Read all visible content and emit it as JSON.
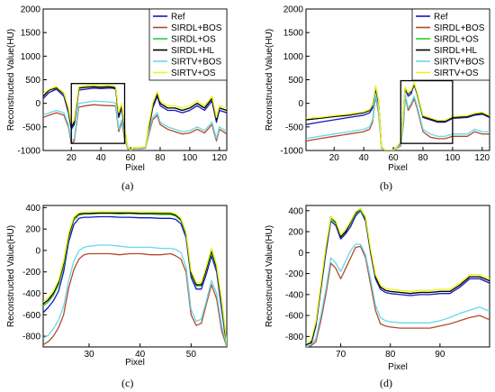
{
  "figure": {
    "series": [
      {
        "name": "Ref",
        "color": "#1515c8"
      },
      {
        "name": "SIRDL+BOS",
        "color": "#b34a2a"
      },
      {
        "name": "SIRDL+OS",
        "color": "#2bd12b"
      },
      {
        "name": "SIRDL+HL",
        "color": "#000000"
      },
      {
        "name": "SIRTV+BOS",
        "color": "#66d9e8"
      },
      {
        "name": "SIRTV+OS",
        "color": "#f2f21a"
      }
    ]
  },
  "chart_data": [
    {
      "type": "line",
      "caption": "(a)",
      "xlabel": "Pixel",
      "ylabel": "Reconstructed Value(HU)",
      "xlim": [
        1,
        125
      ],
      "ylim": [
        -1000,
        2000
      ],
      "xticks": [
        20,
        40,
        60,
        80,
        100,
        120
      ],
      "yticks": [
        -1000,
        -500,
        0,
        500,
        1000,
        1500,
        2000
      ],
      "legend": "top-right",
      "zoom_box": {
        "x": [
          20,
          56
        ],
        "y": [
          -850,
          420
        ]
      },
      "x": [
        1,
        5,
        10,
        15,
        18,
        20,
        22,
        25,
        30,
        35,
        40,
        45,
        48,
        50,
        52,
        54,
        56,
        58,
        60,
        62,
        65,
        70,
        72,
        75,
        78,
        80,
        85,
        90,
        95,
        100,
        105,
        110,
        115,
        118,
        120,
        125
      ],
      "series": [
        {
          "name": "Ref",
          "values": [
            100,
            230,
            300,
            150,
            -200,
            -550,
            -450,
            280,
            300,
            320,
            310,
            320,
            320,
            300,
            -300,
            -100,
            -600,
            -950,
            -1000,
            -950,
            -960,
            -950,
            -600,
            -100,
            150,
            -50,
            -150,
            -150,
            -200,
            -150,
            -50,
            -150,
            50,
            -400,
            -150,
            -200
          ]
        },
        {
          "name": "SIRDL+BOS",
          "values": [
            -300,
            -250,
            -200,
            -250,
            -500,
            -850,
            -800,
            -80,
            -50,
            -30,
            -40,
            -50,
            -50,
            -60,
            -600,
            -400,
            -750,
            -950,
            -1000,
            -960,
            -960,
            -950,
            -700,
            -350,
            -250,
            -450,
            -550,
            -600,
            -650,
            -630,
            -550,
            -630,
            -450,
            -800,
            -550,
            -650
          ]
        },
        {
          "name": "SIRDL+OS",
          "values": [
            150,
            280,
            320,
            200,
            -150,
            -500,
            -400,
            330,
            350,
            360,
            350,
            360,
            350,
            330,
            -250,
            -50,
            -550,
            -930,
            -1000,
            -940,
            -950,
            -930,
            -550,
            -50,
            200,
            0,
            -100,
            -100,
            -150,
            -100,
            0,
            -100,
            100,
            -350,
            -100,
            -150
          ]
        },
        {
          "name": "SIRDL+HL",
          "values": [
            150,
            280,
            330,
            200,
            -150,
            -500,
            -400,
            320,
            340,
            350,
            340,
            350,
            340,
            320,
            -250,
            -50,
            -550,
            -930,
            -1000,
            -940,
            -950,
            -930,
            -550,
            -50,
            200,
            0,
            -100,
            -100,
            -150,
            -100,
            0,
            -100,
            100,
            -350,
            -100,
            -150
          ]
        },
        {
          "name": "SIRTV+BOS",
          "values": [
            -250,
            -200,
            -150,
            -200,
            -450,
            -800,
            -750,
            0,
            20,
            50,
            40,
            30,
            20,
            0,
            -550,
            -350,
            -700,
            -930,
            -1000,
            -950,
            -950,
            -940,
            -650,
            -300,
            -200,
            -400,
            -500,
            -550,
            -600,
            -580,
            -500,
            -580,
            -400,
            -750,
            -500,
            -600
          ]
        },
        {
          "name": "SIRTV+OS",
          "values": [
            200,
            300,
            350,
            220,
            -100,
            -450,
            -350,
            350,
            370,
            380,
            370,
            380,
            370,
            350,
            -200,
            0,
            -500,
            -920,
            -1000,
            -930,
            -940,
            -920,
            -500,
            0,
            250,
            50,
            -50,
            -50,
            -100,
            -50,
            50,
            -50,
            150,
            -300,
            -50,
            -100
          ]
        }
      ]
    },
    {
      "type": "line",
      "caption": "(b)",
      "xlabel": "Pixel",
      "ylabel": "Reconstructed Value(HU)",
      "xlim": [
        1,
        125
      ],
      "ylim": [
        -1000,
        2000
      ],
      "xticks": [
        20,
        40,
        60,
        80,
        100,
        120
      ],
      "yticks": [
        -1000,
        -500,
        0,
        500,
        1000,
        1500,
        2000
      ],
      "legend": "top-right",
      "zoom_box": {
        "x": [
          65,
          100
        ],
        "y": [
          -850,
          480
        ]
      },
      "x": [
        1,
        10,
        20,
        30,
        40,
        44,
        46,
        48,
        50,
        52,
        55,
        60,
        65,
        67,
        68,
        70,
        72,
        74,
        76,
        80,
        85,
        90,
        95,
        100,
        110,
        115,
        120,
        125
      ],
      "series": [
        {
          "name": "Ref",
          "values": [
            -450,
            -400,
            -350,
            -300,
            -250,
            -200,
            -100,
            300,
            0,
            -950,
            -1000,
            -1000,
            -850,
            -100,
            300,
            150,
            200,
            400,
            200,
            -300,
            -350,
            -400,
            -400,
            -320,
            -300,
            -250,
            -230,
            -300
          ]
        },
        {
          "name": "SIRDL+BOS",
          "values": [
            -800,
            -750,
            -700,
            -650,
            -600,
            -550,
            -400,
            150,
            -200,
            -950,
            -1000,
            -1000,
            -900,
            -400,
            150,
            -150,
            -50,
            100,
            -100,
            -600,
            -720,
            -750,
            -750,
            -700,
            -700,
            -600,
            -650,
            -650
          ]
        },
        {
          "name": "SIRDL+OS",
          "values": [
            -350,
            -320,
            -280,
            -250,
            -200,
            -150,
            -50,
            350,
            50,
            -930,
            -1000,
            -1000,
            -830,
            -50,
            320,
            200,
            250,
            420,
            220,
            -280,
            -330,
            -380,
            -380,
            -300,
            -280,
            -230,
            -210,
            -280
          ]
        },
        {
          "name": "SIRDL+HL",
          "values": [
            -350,
            -320,
            -280,
            -250,
            -200,
            -150,
            -50,
            350,
            50,
            -930,
            -1000,
            -1000,
            -830,
            -50,
            340,
            200,
            250,
            420,
            220,
            -280,
            -330,
            -380,
            -380,
            -300,
            -280,
            -230,
            -210,
            -280
          ]
        },
        {
          "name": "SIRTV+BOS",
          "values": [
            -750,
            -700,
            -650,
            -600,
            -550,
            -500,
            -350,
            200,
            -150,
            -950,
            -1000,
            -1000,
            -880,
            -350,
            200,
            -100,
            0,
            150,
            -50,
            -550,
            -650,
            -700,
            -700,
            -650,
            -650,
            -550,
            -600,
            -600
          ]
        },
        {
          "name": "SIRTV+OS",
          "values": [
            -320,
            -300,
            -260,
            -230,
            -180,
            -130,
            -30,
            370,
            70,
            -920,
            -1000,
            -1000,
            -820,
            -30,
            350,
            220,
            270,
            440,
            240,
            -260,
            -310,
            -360,
            -360,
            -280,
            -260,
            -210,
            -190,
            -260
          ]
        }
      ]
    },
    {
      "type": "line",
      "caption": "(c)",
      "xlabel": "Pixel",
      "ylabel": "Reconstructed Value(HU)",
      "xlim": [
        21,
        57
      ],
      "ylim": [
        -900,
        420
      ],
      "xticks": [
        30,
        40,
        50
      ],
      "yticks": [
        -800,
        -600,
        -400,
        -200,
        0,
        200,
        400
      ],
      "x": [
        21,
        22,
        23,
        24,
        25,
        26,
        27,
        28,
        29,
        30,
        32,
        34,
        36,
        38,
        40,
        42,
        44,
        46,
        47,
        48,
        49,
        50,
        51,
        52,
        53,
        54,
        55,
        56,
        57
      ],
      "series": [
        {
          "name": "Ref",
          "values": [
            -580,
            -530,
            -470,
            -380,
            -200,
            80,
            240,
            300,
            310,
            310,
            315,
            315,
            310,
            310,
            305,
            305,
            300,
            300,
            290,
            250,
            120,
            -250,
            -360,
            -360,
            -220,
            -50,
            -200,
            -550,
            -900
          ]
        },
        {
          "name": "SIRDL+BOS",
          "values": [
            -880,
            -850,
            -800,
            -720,
            -600,
            -350,
            -180,
            -80,
            -40,
            -30,
            -30,
            -30,
            -40,
            -30,
            -30,
            -40,
            -40,
            -30,
            -50,
            -80,
            -200,
            -600,
            -700,
            -680,
            -500,
            -320,
            -450,
            -750,
            -900
          ]
        },
        {
          "name": "SIRDL+OS",
          "values": [
            -520,
            -480,
            -420,
            -320,
            -150,
            120,
            280,
            330,
            340,
            340,
            345,
            345,
            340,
            345,
            340,
            340,
            335,
            335,
            320,
            280,
            150,
            -220,
            -330,
            -330,
            -180,
            -20,
            -170,
            -500,
            -880
          ]
        },
        {
          "name": "SIRDL+HL",
          "values": [
            -500,
            -460,
            -400,
            -300,
            -120,
            140,
            300,
            340,
            345,
            345,
            350,
            350,
            350,
            350,
            345,
            345,
            345,
            345,
            330,
            290,
            160,
            -210,
            -320,
            -320,
            -170,
            0,
            -160,
            -480,
            -870
          ]
        },
        {
          "name": "SIRTV+BOS",
          "values": [
            -820,
            -790,
            -730,
            -650,
            -520,
            -280,
            -100,
            0,
            30,
            40,
            50,
            50,
            40,
            30,
            30,
            30,
            20,
            20,
            10,
            -20,
            -150,
            -550,
            -660,
            -640,
            -470,
            -280,
            -400,
            -700,
            -890
          ]
        },
        {
          "name": "SIRTV+OS",
          "values": [
            -480,
            -440,
            -380,
            -280,
            -100,
            160,
            310,
            350,
            360,
            360,
            360,
            360,
            360,
            360,
            360,
            360,
            355,
            355,
            340,
            300,
            170,
            -190,
            -300,
            -300,
            -150,
            20,
            -140,
            -460,
            -860
          ]
        }
      ]
    },
    {
      "type": "line",
      "caption": "(d)",
      "xlabel": "Pixel",
      "ylabel": "Reconstructed Value(HU)",
      "xlim": [
        63,
        100
      ],
      "ylim": [
        -900,
        450
      ],
      "xticks": [
        70,
        80,
        90
      ],
      "yticks": [
        -800,
        -600,
        -400,
        -200,
        0,
        200,
        400
      ],
      "x": [
        63,
        64,
        65,
        66,
        67,
        68,
        69,
        70,
        71,
        72,
        73,
        74,
        75,
        76,
        77,
        78,
        79,
        80,
        82,
        84,
        86,
        88,
        90,
        92,
        94,
        96,
        98,
        100
      ],
      "series": [
        {
          "name": "Ref",
          "values": [
            -900,
            -880,
            -700,
            -350,
            0,
            300,
            260,
            130,
            180,
            250,
            350,
            400,
            300,
            0,
            -250,
            -350,
            -380,
            -390,
            -400,
            -410,
            -400,
            -400,
            -390,
            -390,
            -330,
            -250,
            -250,
            -290
          ]
        },
        {
          "name": "SIRDL+BOS",
          "values": [
            -900,
            -890,
            -850,
            -650,
            -400,
            -100,
            -150,
            -250,
            -150,
            -50,
            50,
            60,
            -50,
            -300,
            -550,
            -680,
            -700,
            -710,
            -720,
            -720,
            -720,
            -720,
            -700,
            -680,
            -650,
            -620,
            -600,
            -640
          ]
        },
        {
          "name": "SIRDL+OS",
          "values": [
            -880,
            -860,
            -680,
            -320,
            40,
            320,
            280,
            150,
            200,
            280,
            370,
            410,
            320,
            20,
            -230,
            -330,
            -360,
            -370,
            -380,
            -390,
            -380,
            -380,
            -370,
            -370,
            -310,
            -230,
            -230,
            -270
          ]
        },
        {
          "name": "SIRDL+HL",
          "values": [
            -880,
            -860,
            -680,
            -320,
            40,
            340,
            290,
            150,
            200,
            290,
            380,
            420,
            330,
            20,
            -230,
            -330,
            -360,
            -370,
            -380,
            -390,
            -380,
            -380,
            -370,
            -370,
            -310,
            -230,
            -230,
            -270
          ]
        },
        {
          "name": "SIRTV+BOS",
          "values": [
            -900,
            -880,
            -820,
            -600,
            -350,
            -50,
            -100,
            -180,
            -80,
            20,
            80,
            80,
            -20,
            -250,
            -500,
            -620,
            -650,
            -660,
            -670,
            -670,
            -670,
            -670,
            -650,
            -620,
            -580,
            -550,
            -520,
            -560
          ]
        },
        {
          "name": "SIRTV+OS",
          "values": [
            -860,
            -840,
            -660,
            -300,
            60,
            340,
            300,
            170,
            220,
            300,
            390,
            420,
            340,
            40,
            -210,
            -310,
            -340,
            -350,
            -360,
            -370,
            -360,
            -360,
            -350,
            -350,
            -290,
            -210,
            -210,
            -250
          ]
        }
      ]
    }
  ]
}
